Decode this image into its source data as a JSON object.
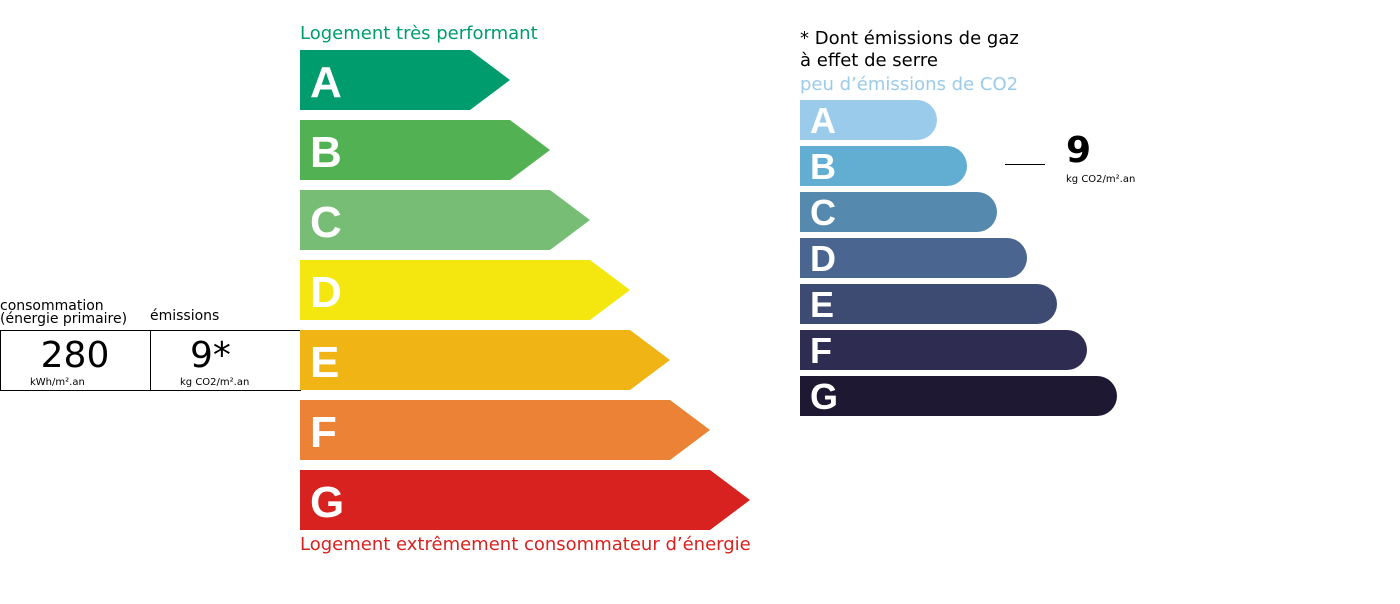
{
  "energy": {
    "top_label": "Logement très performant",
    "bottom_label": "Logement extrêmement consommateur d’énergie",
    "classes": [
      "A",
      "B",
      "C",
      "D",
      "E",
      "F",
      "G"
    ],
    "colors": [
      "#009c6d",
      "#52b153",
      "#78bd76",
      "#f4e70f",
      "#f0b415",
      "#eb8235",
      "#d7221f"
    ]
  },
  "box": {
    "consumption_label_1": "consommation",
    "consumption_label_2": "(énergie primaire)",
    "consumption_value": "280",
    "consumption_unit": "kWh/m².an",
    "emissions_label": "émissions",
    "emissions_value": "9*",
    "emissions_unit": "kg CO2/m².an"
  },
  "ghg": {
    "note_1": "* Dont émissions de gaz",
    "note_2": "à effet de serre",
    "top_label": "peu d’émissions de CO2",
    "classes": [
      "A",
      "B",
      "C",
      "D",
      "E",
      "F",
      "G"
    ],
    "colors": [
      "#9bcbeb",
      "#62add2",
      "#5589ae",
      "#4a6690",
      "#3d4a72",
      "#2e2c51",
      "#1e1833"
    ],
    "value": "9",
    "unit": "kg CO2/m².an"
  }
}
